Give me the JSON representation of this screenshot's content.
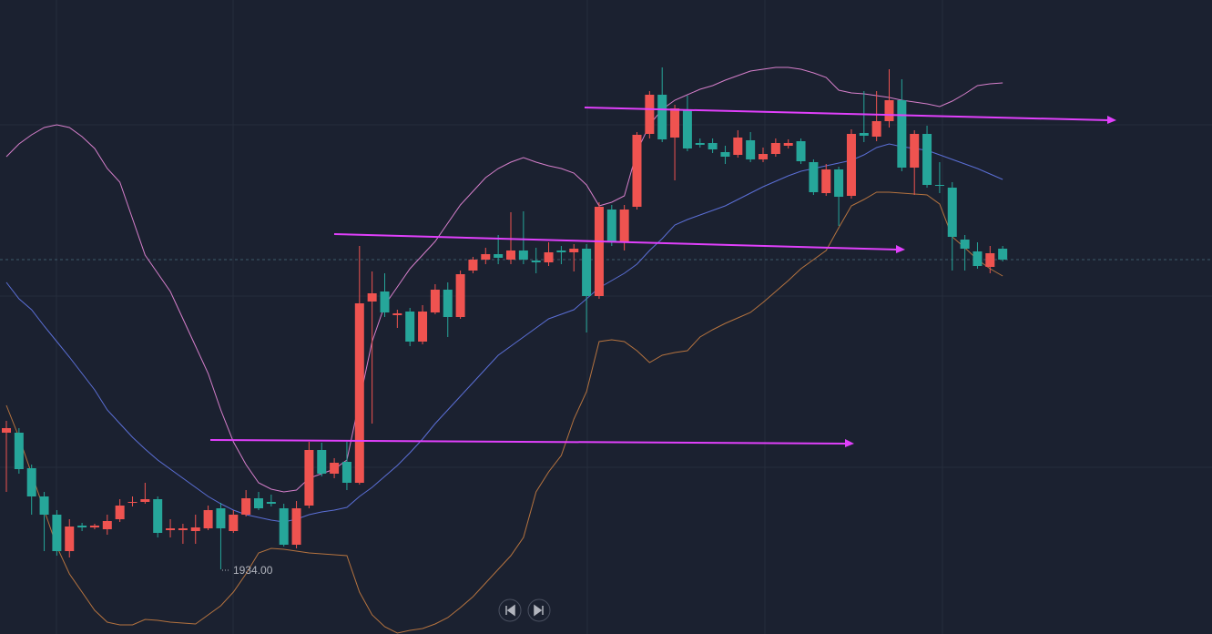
{
  "chart_data": {
    "type": "candlestick",
    "up_color": "#26a69a",
    "down_color": "#ef5350",
    "ylim": [
      1926.9,
      1996.5
    ],
    "low_label": "1934.00",
    "open": [
      1949.5,
      1945.0,
      1942.0,
      1940.0,
      1936.0,
      1938.7,
      1938.6,
      1938.8,
      1939.3,
      1941.0,
      1941.4,
      1941.7,
      1938.0,
      1938.5,
      1938.5,
      1938.6,
      1940.5,
      1938.5,
      1940.0,
      1941.8,
      1940.7,
      1941.2,
      1936.7,
      1940.7,
      1947.1,
      1944.5,
      1945.7,
      1943.5,
      1963.2,
      1964.3,
      1962.2,
      1962.1,
      1959.0,
      1962.3,
      1964.7,
      1961.7,
      1966.4,
      1968.0,
      1968.6,
      1968.2,
      1969.0,
      1968.0,
      1967.7,
      1968.8,
      1968.8,
      1969.2,
      1964.0,
      1973.8,
      1970.0,
      1973.5,
      1981.7,
      1986.1,
      1981.2,
      1984.6,
      1980.2,
      1980.6,
      1980.1,
      1979.3,
      1981.4,
      1979.0,
      1979.6,
      1980.8,
      1980.8,
      1978.8,
      1975.4,
      1977.9,
      1974.9,
      1981.8,
      1981.6,
      1983.2,
      1985.5,
      1978.1,
      1981.8,
      1976.2,
      1976.1,
      1970.5,
      1969.2,
      1967.3,
      1968.7,
      1968.0
    ],
    "high": [
      1950.3,
      1949.5,
      1945.5,
      1942.5,
      1940.5,
      1939.5,
      1939.1,
      1939.0,
      1940.0,
      1941.7,
      1942.0,
      1943.5,
      1942.0,
      1939.5,
      1939.0,
      1940.0,
      1941.0,
      1941.3,
      1940.5,
      1942.7,
      1942.5,
      1942.2,
      1941.2,
      1941.5,
      1948.0,
      1947.9,
      1946.2,
      1948.0,
      1969.5,
      1966.7,
      1966.5,
      1962.5,
      1962.7,
      1963.0,
      1965.3,
      1965.5,
      1966.8,
      1968.3,
      1969.3,
      1970.7,
      1973.2,
      1973.3,
      1969.3,
      1969.9,
      1969.5,
      1969.7,
      1969.7,
      1974.3,
      1974.0,
      1974.0,
      1982.0,
      1986.5,
      1989.1,
      1985.0,
      1986.0,
      1981.3,
      1981.3,
      1980.5,
      1982.2,
      1982.0,
      1980.3,
      1981.3,
      1981.2,
      1981.3,
      1979.0,
      1978.5,
      1978.2,
      1982.3,
      1986.5,
      1986.5,
      1988.9,
      1987.8,
      1982.2,
      1982.7,
      1978.7,
      1976.5,
      1970.7,
      1969.9,
      1969.5,
      1969.5
    ],
    "low": [
      1942.5,
      1944.5,
      1940.0,
      1936.0,
      1935.5,
      1935.3,
      1938.2,
      1938.4,
      1937.8,
      1939.2,
      1940.9,
      1941.2,
      1937.5,
      1937.5,
      1936.8,
      1936.8,
      1938.3,
      1934.0,
      1938.0,
      1939.8,
      1940.5,
      1940.9,
      1936.5,
      1936.3,
      1940.7,
      1944.2,
      1944.0,
      1942.7,
      1943.3,
      1950.0,
      1961.7,
      1960.5,
      1958.5,
      1958.7,
      1962.0,
      1959.5,
      1961.5,
      1966.5,
      1967.5,
      1967.5,
      1967.5,
      1967.5,
      1966.5,
      1967.3,
      1967.5,
      1966.7,
      1960.0,
      1963.7,
      1969.5,
      1969.0,
      1973.5,
      1981.3,
      1980.9,
      1976.7,
      1979.9,
      1980.3,
      1979.7,
      1978.5,
      1979.2,
      1978.7,
      1978.7,
      1979.3,
      1980.2,
      1978.5,
      1975.1,
      1975.0,
      1971.7,
      1974.7,
      1980.9,
      1981.0,
      1982.5,
      1977.7,
      1975.1,
      1975.9,
      1975.3,
      1966.8,
      1966.8,
      1967.0,
      1966.5,
      1967.8
    ],
    "close": [
      1949.0,
      1949.0,
      1945.1,
      1942.0,
      1940.0,
      1936.0,
      1938.8,
      1938.6,
      1938.4,
      1939.5,
      1941.3,
      1941.4,
      1941.7,
      1938.3,
      1938.3,
      1938.2,
      1938.5,
      1940.7,
      1938.2,
      1940.0,
      1941.8,
      1941.4,
      1940.7,
      1936.7,
      1941.0,
      1947.1,
      1944.5,
      1945.8,
      1943.5,
      1963.4,
      1964.5,
      1961.9,
      1962.3,
      1959.0,
      1962.2,
      1964.7,
      1961.7,
      1966.8,
      1968.0,
      1968.6,
      1968.0,
      1969.0,
      1967.9,
      1967.7,
      1969.0,
      1968.8,
      1969.2,
      1964.0,
      1973.5,
      1970.0,
      1973.8,
      1981.8,
      1986.1,
      1981.4,
      1984.5,
      1980.8,
      1980.8,
      1979.8,
      1979.5,
      1981.1,
      1979.0,
      1979.6,
      1980.5,
      1981.0,
      1978.7,
      1975.3,
      1977.9,
      1975.0,
      1981.9,
      1981.5,
      1983.2,
      1985.5,
      1978.1,
      1981.8,
      1976.2,
      1975.9,
      1970.2,
      1968.9,
      1967.2,
      1969.2
    ],
    "bands": [
      {
        "color": "#d67fcb",
        "values": [
          1979.3,
          1980.7,
          1981.7,
          1982.5,
          1982.8,
          1982.5,
          1981.5,
          1980.2,
          1978.0,
          1976.5,
          1972.5,
          1968.5,
          1966.5,
          1964.5,
          1961.5,
          1958.5,
          1955.5,
          1951.5,
          1948.0,
          1945.5,
          1943.5,
          1942.8,
          1942.5,
          1942.7,
          1944.0,
          1944.5,
          1945.0,
          1946.0,
          1952.5,
          1959.0,
          1963.0,
          1965.0,
          1967.0,
          1968.5,
          1970.0,
          1972.0,
          1974.0,
          1975.5,
          1977.0,
          1978.0,
          1978.7,
          1979.2,
          1978.7,
          1978.3,
          1978.0,
          1977.5,
          1976.2,
          1973.9,
          1974.3,
          1975.0,
          1979.9,
          1982.8,
          1984.5,
          1985.5,
          1986.1,
          1986.7,
          1987.1,
          1987.7,
          1988.2,
          1988.7,
          1988.9,
          1989.1,
          1989.1,
          1988.9,
          1988.5,
          1988.0,
          1986.6,
          1986.3,
          1986.2,
          1986.0,
          1985.8,
          1985.5,
          1985.3,
          1985.1,
          1984.8,
          1985.4,
          1986.2,
          1987.1,
          1987.3,
          1987.4
        ]
      },
      {
        "color": "#5b6fd6",
        "values": [
          1965.5,
          1963.7,
          1962.5,
          1960.7,
          1959.0,
          1957.3,
          1955.5,
          1953.7,
          1951.5,
          1950.0,
          1948.5,
          1947.2,
          1946.0,
          1945.0,
          1944.0,
          1943.0,
          1942.0,
          1941.2,
          1940.5,
          1940.0,
          1939.7,
          1939.4,
          1939.2,
          1939.5,
          1940.0,
          1940.3,
          1940.5,
          1940.8,
          1942.0,
          1943.0,
          1944.2,
          1945.4,
          1946.8,
          1948.3,
          1950.0,
          1951.5,
          1953.0,
          1954.5,
          1956.0,
          1957.5,
          1958.5,
          1959.5,
          1960.5,
          1961.5,
          1962.0,
          1962.5,
          1963.7,
          1964.9,
          1965.7,
          1966.5,
          1967.5,
          1969.0,
          1970.3,
          1971.8,
          1972.4,
          1972.9,
          1973.4,
          1973.9,
          1974.6,
          1975.3,
          1976.0,
          1976.6,
          1977.2,
          1977.7,
          1978.0,
          1978.3,
          1978.6,
          1978.9,
          1979.5,
          1980.3,
          1980.7,
          1980.4,
          1980.2,
          1980.0,
          1979.5,
          1979.0,
          1978.5,
          1978.0,
          1977.4,
          1976.8
        ]
      },
      {
        "color": "#b5733f",
        "values": [
          1952.0,
          1948.5,
          1944.5,
          1940.5,
          1936.5,
          1933.5,
          1931.5,
          1929.5,
          1928.2,
          1927.9,
          1927.9,
          1928.5,
          1928.4,
          1928.2,
          1928.1,
          1928.0,
          1929.0,
          1930.0,
          1931.5,
          1933.5,
          1935.8,
          1936.3,
          1936.2,
          1936.0,
          1935.8,
          1935.7,
          1935.6,
          1935.5,
          1931.5,
          1929.0,
          1927.7,
          1927.0,
          1927.3,
          1927.5,
          1928.0,
          1928.7,
          1929.8,
          1931.0,
          1932.5,
          1934.0,
          1935.5,
          1937.5,
          1942.5,
          1944.7,
          1946.5,
          1950.5,
          1953.5,
          1959.0,
          1959.2,
          1959.0,
          1958.0,
          1956.7,
          1957.5,
          1957.8,
          1958.0,
          1959.5,
          1960.3,
          1961.0,
          1961.6,
          1962.2,
          1963.3,
          1964.5,
          1965.7,
          1967.0,
          1968.0,
          1969.0,
          1971.5,
          1973.9,
          1974.6,
          1975.4,
          1975.4,
          1975.3,
          1975.2,
          1975.1,
          1974.1,
          1970.5,
          1969.3,
          1968.0,
          1967.0,
          1966.2
        ]
      }
    ]
  }
}
